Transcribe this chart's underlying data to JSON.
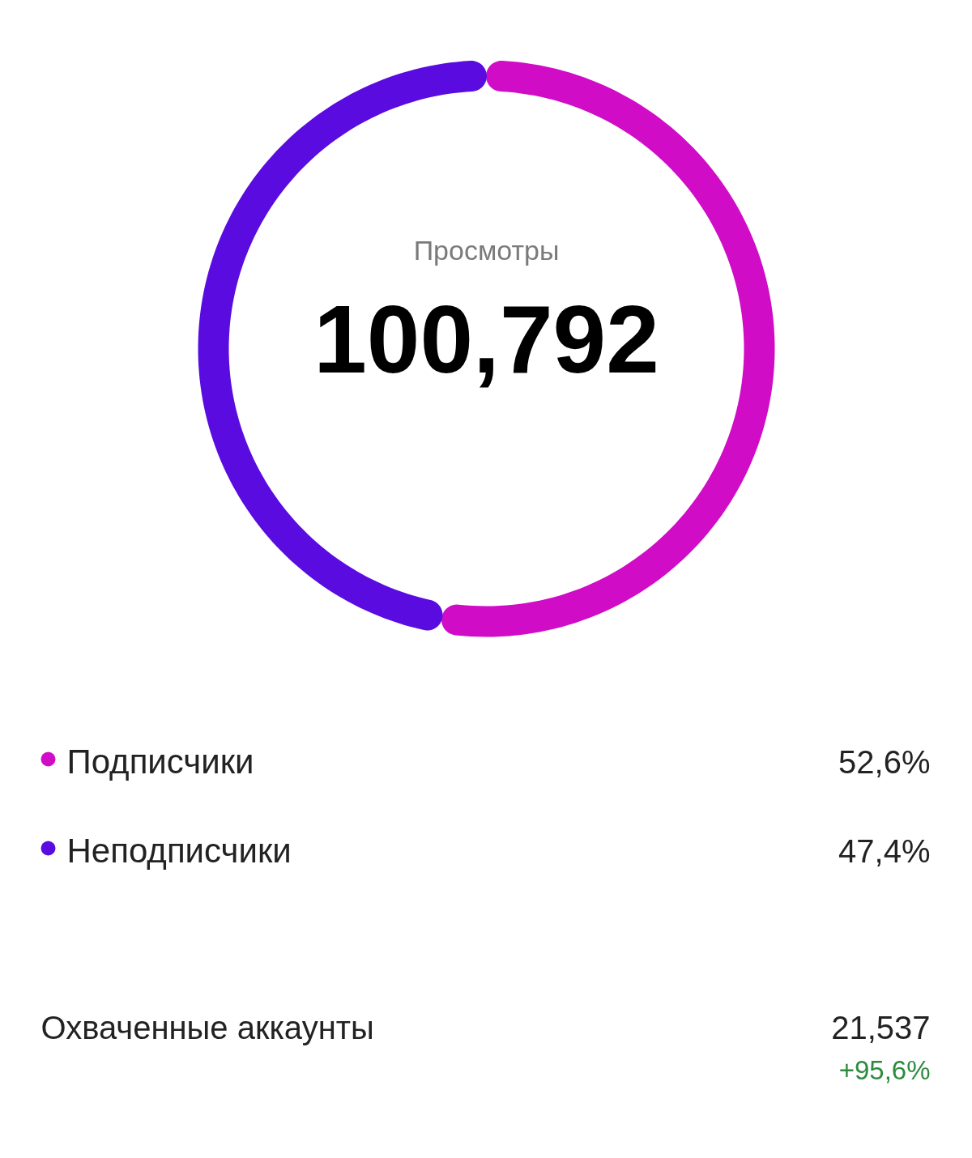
{
  "chart_data": {
    "type": "donut",
    "title": "Просмотры",
    "categories": [
      "Подписчики",
      "Неподписчики"
    ],
    "values": [
      52.6,
      47.4
    ],
    "colors": [
      "#d00cc6",
      "#5a0be0"
    ],
    "value_labels": [
      "52,6%",
      "47,4%"
    ],
    "legend": "bottom",
    "annotations": [
      "100,792",
      "Охваченные аккаунты",
      "21,537",
      "+95,6%"
    ]
  }
}
